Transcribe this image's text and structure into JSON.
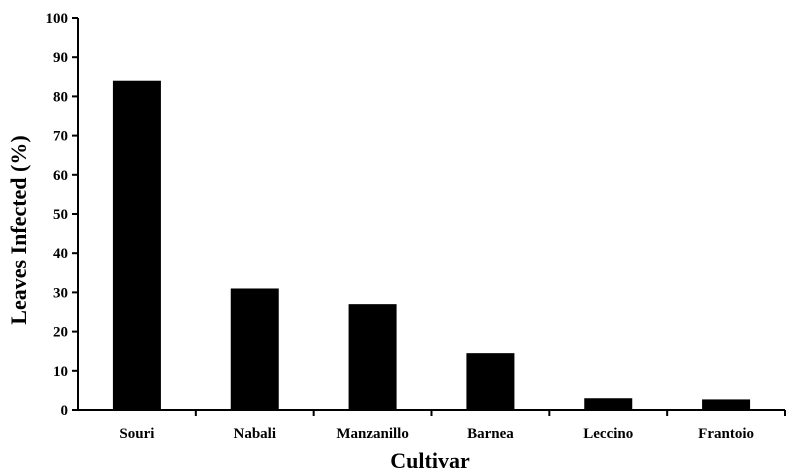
{
  "chart_data": {
    "type": "bar",
    "title": "",
    "xlabel": "Cultivar",
    "ylabel": "Leaves Infected (%)",
    "categories": [
      "Souri",
      "Nabali",
      "Manzanillo",
      "Barnea",
      "Leccino",
      "Frantoio"
    ],
    "values": [
      84,
      31,
      27,
      14.5,
      3,
      2.7
    ],
    "ylim": [
      0,
      100
    ],
    "yticks": [
      "0",
      "10",
      "20",
      "30",
      "40",
      "50",
      "60",
      "70",
      "80",
      "90",
      "100"
    ],
    "grid": false,
    "bar_color": "#000000"
  }
}
